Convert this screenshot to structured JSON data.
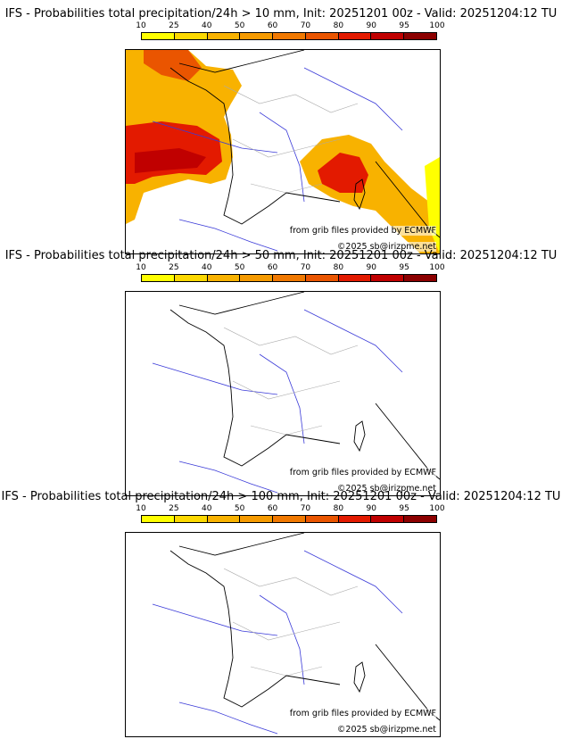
{
  "colorbar": {
    "ticks": [
      "10",
      "25",
      "40",
      "50",
      "60",
      "70",
      "80",
      "90",
      "95",
      "100"
    ],
    "colors": [
      "#ffff00",
      "#fcd800",
      "#f8b200",
      "#f59a00",
      "#f07800",
      "#ea5500",
      "#e31a00",
      "#c00000",
      "#8c0000"
    ]
  },
  "credits": {
    "source": "from grib files provided by ECMWF",
    "copyright": "©2025 sb@irizpme.net"
  },
  "panels": [
    {
      "title": "IFS - Probabilities total precipitation/24h > 10 mm, Init: 20251201 00z - Valid: 20251204:12 TU",
      "threshold": "10 mm"
    },
    {
      "title": "IFS - Probabilities total precipitation/24h > 50 mm, Init: 20251201 00z - Valid: 20251204:12 TU",
      "threshold": "50 mm"
    },
    {
      "title": "IFS - Probabilities total precipitation/24h > 100 mm, Init: 20251201 00z - Valid: 20251204:12 TU",
      "threshold": "100 mm"
    }
  ],
  "map_colors": {
    "coast": "#000000",
    "borders": "#aaaaaa",
    "rivers": "#3a3ad8"
  }
}
